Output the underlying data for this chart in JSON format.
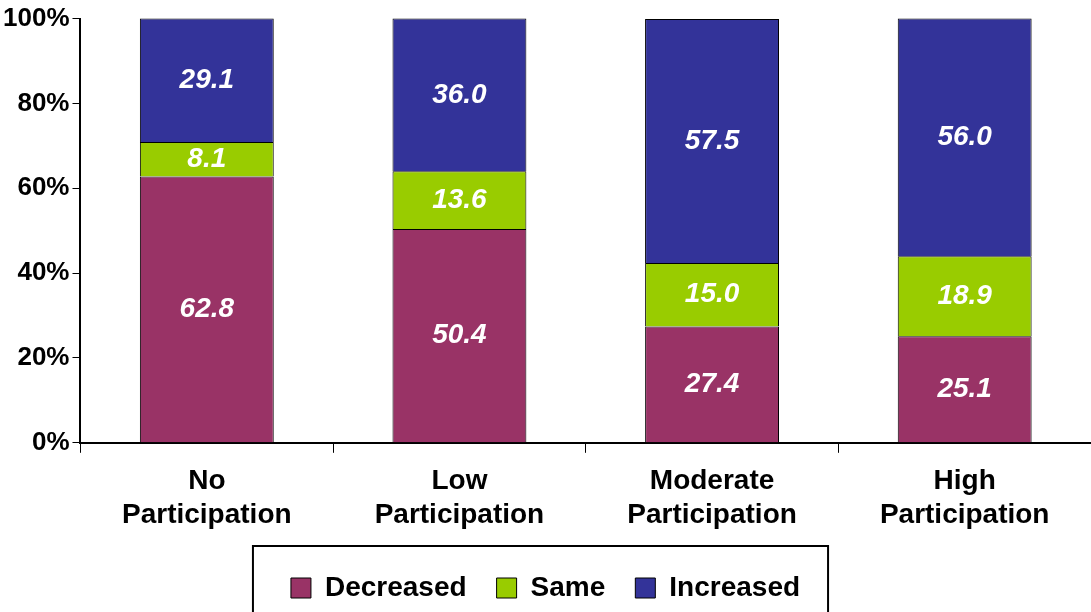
{
  "chart_data": {
    "type": "bar",
    "stacked": true,
    "categories": [
      "No Participation",
      "Low Participation",
      "Moderate Participation",
      "High Participation"
    ],
    "series": [
      {
        "name": "Decreased",
        "color": "#993366",
        "values": [
          62.8,
          50.4,
          27.4,
          25.1
        ],
        "value_labels": [
          "62.8",
          "50.4",
          "27.4",
          "25.1"
        ]
      },
      {
        "name": "Same",
        "color": "#99cc00",
        "values": [
          8.1,
          13.6,
          15.0,
          18.9
        ],
        "value_labels": [
          "8.1",
          "13.6",
          "15.0",
          "18.9"
        ]
      },
      {
        "name": "Increased",
        "color": "#333399",
        "values": [
          29.1,
          36.0,
          57.5,
          56.0
        ],
        "value_labels": [
          "29.1",
          "36.0",
          "57.5",
          "56.0"
        ]
      }
    ],
    "ylim": [
      0,
      100
    ],
    "yticks": [
      {
        "value": 0,
        "label": "0%"
      },
      {
        "value": 20,
        "label": "20%"
      },
      {
        "value": 40,
        "label": "40%"
      },
      {
        "value": 60,
        "label": "60%"
      },
      {
        "value": 80,
        "label": "80%"
      },
      {
        "value": 100,
        "label": "100%"
      }
    ],
    "grid": false,
    "legend": "bottom"
  }
}
